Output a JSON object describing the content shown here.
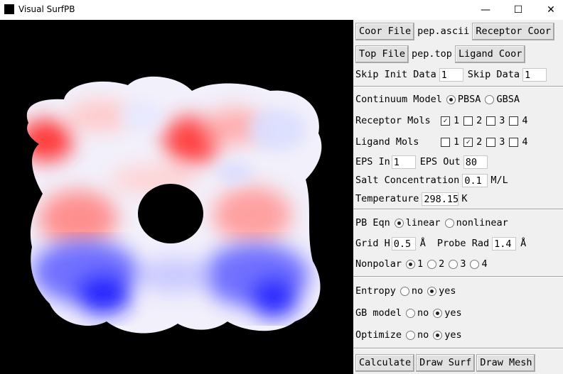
{
  "window": {
    "title": "Visual SurfPB",
    "minimize": "—",
    "maximize": "☐",
    "close": "✕"
  },
  "files": {
    "coor_button": "Coor File",
    "coor_value": "pep.ascii",
    "receptor_button": "Receptor Coor",
    "top_button": "Top File",
    "top_value": "pep.top",
    "ligand_button": "Ligand Coor",
    "skip_init_label": "Skip Init Data",
    "skip_init_value": "1",
    "skip_label": "Skip Data",
    "skip_value": "1"
  },
  "model": {
    "continuum_label": "Continuum Model",
    "pbsa": "PBSA",
    "gbsa": "GBSA",
    "selected": "PBSA",
    "receptor_label": "Receptor Mols",
    "receptor_mols": [
      {
        "label": "1",
        "checked": true
      },
      {
        "label": "2",
        "checked": false
      },
      {
        "label": "3",
        "checked": false
      },
      {
        "label": "4",
        "checked": false
      }
    ],
    "ligand_label": "Ligand Mols",
    "ligand_mols": [
      {
        "label": "1",
        "checked": false
      },
      {
        "label": "2",
        "checked": true
      },
      {
        "label": "3",
        "checked": false
      },
      {
        "label": "4",
        "checked": false
      }
    ],
    "eps_in_label": "EPS In",
    "eps_in_value": "1",
    "eps_out_label": "EPS Out",
    "eps_out_value": "80",
    "salt_label": "Salt Concentration",
    "salt_value": "0.1",
    "salt_unit": "M/L",
    "temp_label": "Temperature",
    "temp_value": "298.15",
    "temp_unit": "K"
  },
  "pb": {
    "eqn_label": "PB Eqn",
    "linear": "linear",
    "nonlinear": "nonlinear",
    "eqn_selected": "linear",
    "grid_label": "Grid H",
    "grid_value": "0.5",
    "grid_unit": "Å",
    "probe_label": "Probe Rad",
    "probe_value": "1.4",
    "probe_unit": "Å",
    "nonpolar_label": "Nonpolar",
    "nonpolar_options": [
      "1",
      "2",
      "3",
      "4"
    ],
    "nonpolar_selected": "1"
  },
  "options": {
    "entropy_label": "Entropy",
    "gb_label": "GB model",
    "optimize_label": "Optimize",
    "no": "no",
    "yes": "yes",
    "entropy": "yes",
    "gb_model": "yes",
    "optimize": "yes"
  },
  "actions": {
    "calculate": "Calculate",
    "draw_surf": "Draw Surf",
    "draw_mesh": "Draw Mesh"
  },
  "colors": {
    "positive": "#ff2a2a",
    "negative": "#1010ff",
    "neutral": "#ffffff",
    "background": "#000000"
  }
}
